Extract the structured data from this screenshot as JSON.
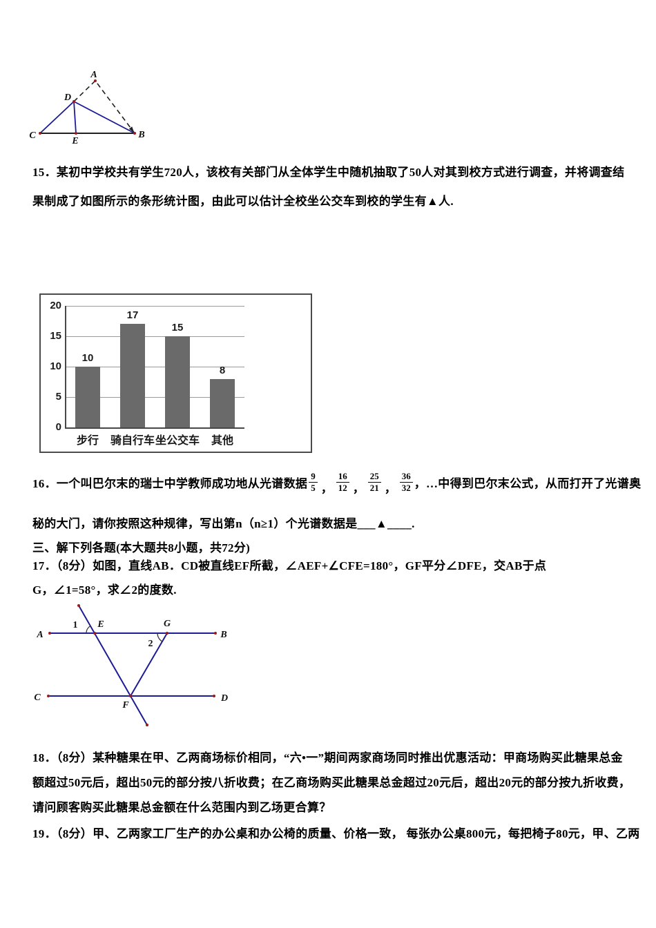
{
  "document": {
    "bg": "#ffffff",
    "text_color": "#000000"
  },
  "colors": {
    "figure_line_blue": "#1b1b96",
    "figure_line_dark": "#1f1f1f",
    "point_dot": "#9e1a1a",
    "bar_fill": "#6a6a6a",
    "chart_border": "#4a4a4a",
    "gridline": "#9a9a9a"
  },
  "figure1": {
    "labels": {
      "A": "A",
      "D": "D",
      "C": "C",
      "E": "E",
      "B": "B"
    }
  },
  "q15": {
    "line1": "15．某初中学校共有学生720人，该校有关部门从全体学生中随机抽取了50人对其到校方式进行调查，并将调查结",
    "line2": "果制成了如图所示的条形统计图，由此可以估计全校坐公交车到校的学生有▲人."
  },
  "chart_data": {
    "type": "bar",
    "categories": [
      "步行",
      "骑自行车",
      "坐公交车",
      "其他"
    ],
    "values": [
      10,
      17,
      15,
      8
    ],
    "yticks": [
      0,
      5,
      10,
      15,
      20
    ],
    "ylim": [
      0,
      20
    ],
    "grid": true,
    "title": "",
    "xlabel": "",
    "ylabel": ""
  },
  "q16": {
    "prefix": "16．一个叫巴尔末的瑞士中学教师成功地从光谱数据",
    "fractions": [
      {
        "num": "9",
        "den": "5"
      },
      {
        "num": "16",
        "den": "12"
      },
      {
        "num": "25",
        "den": "21"
      },
      {
        "num": "36",
        "den": "32"
      }
    ],
    "fraction_sep": "，",
    "suffix": "，…中得到巴尔末公式，从而打开了光谱奥",
    "line2": "秘的大门，请你按照这种规律，写出第n（n≥1）个光谱数据是___▲____."
  },
  "section3": {
    "heading": "三、解下列各题(本大题共8小题，共72分)"
  },
  "q17": {
    "line1": "17．（8分）如图，直线AB．CD被直线EF所截，∠AEF+∠CFE=180°，GF平分∠DFE，交AB于点",
    "line2": "G，∠1=58°，求∠2的度数.",
    "figure_labels": {
      "A": "A",
      "B": "B",
      "C": "C",
      "D": "D",
      "E": "E",
      "F": "F",
      "G": "G",
      "angle1": "1",
      "angle2": "2"
    }
  },
  "q18": {
    "line1": "18．（8分）某种糖果在甲、乙两商场标价相同，“六•一”期间两家商场同时推出优惠活动：甲商场购买此糖果总金",
    "line2": "额超过50元后，超出50元的部分按八折收费；在乙商场购买此糖果总金超过20元后，超出20元的部分按九折收费，",
    "line3": "请问顾客购买此糖果总金额在什么范围内到乙场更合算？"
  },
  "q19": {
    "line1": "19．（8分）甲、乙两家工厂生产的办公桌和办公椅的质量、价格一致， 每张办公桌800元，每把椅子80元，甲、乙两"
  }
}
